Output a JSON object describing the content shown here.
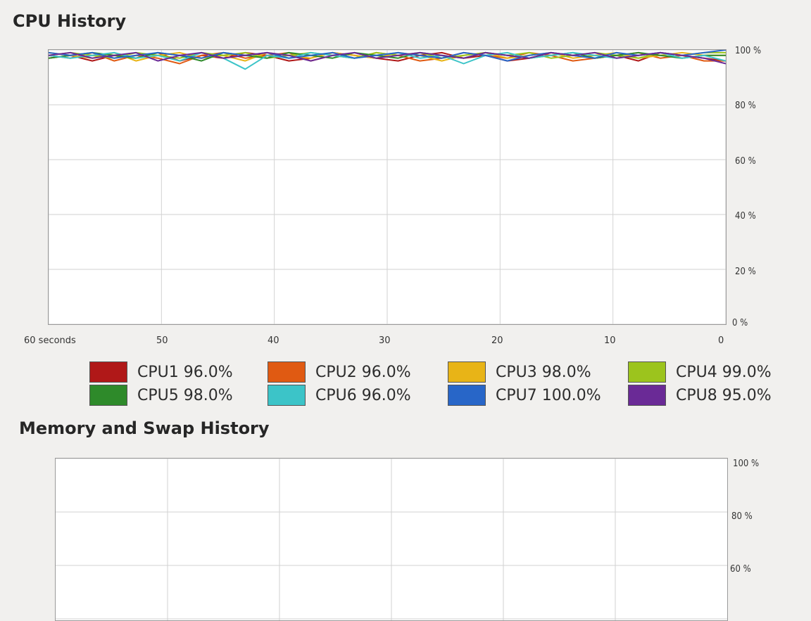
{
  "cpu_history": {
    "title": "CPU History",
    "y_ticks": [
      "100 %",
      "80 %",
      "60 %",
      "40 %",
      "20 %",
      "0 %"
    ],
    "x_ticks": [
      "60 seconds",
      "50",
      "40",
      "30",
      "20",
      "10",
      "0"
    ],
    "legend": [
      {
        "label": "CPU1 96.0%",
        "color": "#b01818"
      },
      {
        "label": "CPU2 96.0%",
        "color": "#e05a12"
      },
      {
        "label": "CPU3 98.0%",
        "color": "#e8b417"
      },
      {
        "label": "CPU4 99.0%",
        "color": "#9cc41d"
      },
      {
        "label": "CPU5 98.0%",
        "color": "#2e8a2a"
      },
      {
        "label": "CPU6 96.0%",
        "color": "#3cc4c8"
      },
      {
        "label": "CPU7 100.0%",
        "color": "#2866c8"
      },
      {
        "label": "CPU8 95.0%",
        "color": "#6a2a96"
      }
    ]
  },
  "memory_history": {
    "title": "Memory and Swap History",
    "y_ticks": [
      "100 %",
      "80 %",
      "60 %"
    ]
  },
  "chart_data": {
    "type": "line",
    "x_range": [
      60,
      0
    ],
    "ylim": [
      0,
      100
    ],
    "grid": true,
    "legend_placement": "bottom",
    "series": [
      {
        "name": "CPU1",
        "current": 96.0,
        "values": [
          97,
          98,
          96,
          98,
          97,
          99,
          96,
          98,
          97,
          99,
          98,
          96,
          97,
          99,
          98,
          97,
          96,
          98,
          99,
          97,
          98,
          96,
          97,
          99,
          98,
          97,
          98,
          96,
          99,
          98,
          97,
          96
        ]
      },
      {
        "name": "CPU2",
        "current": 96.0,
        "values": [
          98,
          97,
          99,
          96,
          98,
          97,
          95,
          98,
          99,
          97,
          98,
          99,
          96,
          98,
          97,
          99,
          98,
          96,
          97,
          99,
          98,
          97,
          99,
          98,
          96,
          97,
          98,
          99,
          97,
          98,
          96,
          96
        ]
      },
      {
        "name": "CPU3",
        "current": 98.0,
        "values": [
          99,
          98,
          97,
          99,
          96,
          98,
          99,
          97,
          98,
          96,
          99,
          98,
          97,
          99,
          98,
          97,
          99,
          98,
          96,
          98,
          99,
          97,
          98,
          99,
          97,
          98,
          99,
          97,
          98,
          99,
          98,
          98
        ]
      },
      {
        "name": "CPU4",
        "current": 99.0,
        "values": [
          98,
          99,
          98,
          97,
          99,
          98,
          97,
          99,
          98,
          99,
          97,
          98,
          99,
          98,
          97,
          99,
          98,
          99,
          97,
          98,
          99,
          98,
          99,
          97,
          98,
          99,
          98,
          97,
          99,
          98,
          99,
          99
        ]
      },
      {
        "name": "CPU5",
        "current": 98.0,
        "values": [
          97,
          98,
          99,
          98,
          97,
          99,
          98,
          96,
          99,
          98,
          97,
          99,
          98,
          97,
          99,
          98,
          97,
          99,
          98,
          97,
          99,
          98,
          97,
          98,
          99,
          97,
          98,
          99,
          98,
          97,
          98,
          98
        ]
      },
      {
        "name": "CPU6",
        "current": 96.0,
        "values": [
          98,
          97,
          98,
          99,
          97,
          98,
          96,
          99,
          97,
          93,
          98,
          97,
          99,
          98,
          97,
          98,
          99,
          97,
          98,
          95,
          98,
          99,
          97,
          98,
          99,
          98,
          97,
          98,
          99,
          97,
          98,
          96
        ]
      },
      {
        "name": "CPU7",
        "current": 100.0,
        "values": [
          99,
          98,
          99,
          97,
          98,
          99,
          98,
          97,
          99,
          98,
          99,
          97,
          98,
          99,
          97,
          98,
          99,
          98,
          97,
          99,
          98,
          96,
          98,
          99,
          98,
          97,
          99,
          98,
          99,
          98,
          99,
          100
        ]
      },
      {
        "name": "CPU8",
        "current": 95.0,
        "values": [
          98,
          99,
          97,
          98,
          99,
          96,
          98,
          99,
          97,
          98,
          99,
          98,
          96,
          98,
          99,
          97,
          98,
          99,
          98,
          97,
          99,
          98,
          97,
          99,
          98,
          99,
          97,
          98,
          99,
          98,
          97,
          95
        ]
      }
    ]
  }
}
